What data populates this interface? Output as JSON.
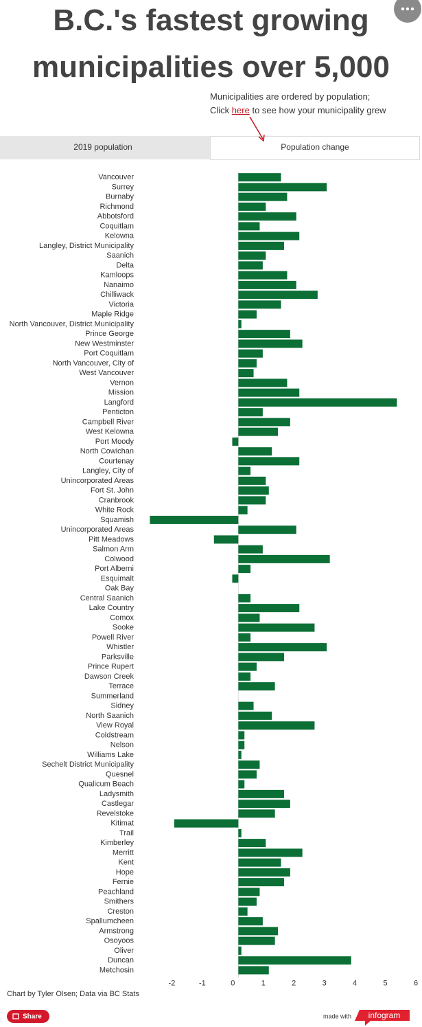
{
  "chart_data": {
    "type": "hbar",
    "title": "B.C.'s fastest growing municipalities over 5,000",
    "color": "#0b6f36",
    "categories": [
      "Vancouver",
      "Surrey",
      "Burnaby",
      "Richmond",
      "Abbotsford",
      "Coquitlam",
      "Kelowna",
      "Langley, District Municipality",
      "Saanich",
      "Delta",
      "Kamloops",
      "Nanaimo",
      "Chilliwack",
      "Victoria",
      "Maple Ridge",
      "North Vancouver, District Municipality",
      "Prince George",
      "New Westminster",
      "Port Coquitlam",
      "North Vancouver, City of",
      "West Vancouver",
      "Vernon",
      "Mission",
      "Langford",
      "Penticton",
      "Campbell River",
      "West Kelowna",
      "Port Moody",
      "North Cowichan",
      "Courtenay",
      "Langley, City of",
      "Unincorporated Areas",
      "Fort St. John",
      "Cranbrook",
      "White Rock",
      "Squamish",
      "Unincorporated Areas",
      "Pitt Meadows",
      "Salmon Arm",
      "Colwood",
      "Port Alberni",
      "Esquimalt",
      "Oak Bay",
      "Central Saanich",
      "Lake Country",
      "Comox",
      "Sooke",
      "Powell River",
      "Whistler",
      "Parksville",
      "Prince Rupert",
      "Dawson Creek",
      "Terrace",
      "Summerland",
      "Sidney",
      "North Saanich",
      "View Royal",
      "Coldstream",
      "Nelson",
      "Williams Lake",
      "Sechelt District Municipality",
      "Quesnel",
      "Qualicum Beach",
      "Ladysmith",
      "Castlegar",
      "Revelstoke",
      "Kitimat",
      "Trail",
      "Kimberley",
      "Merritt",
      "Kent",
      "Hope",
      "Fernie",
      "Peachland",
      "Smithers",
      "Creston",
      "Spallumcheen",
      "Armstrong",
      "Osoyoos",
      "Oliver",
      "Duncan",
      "Metchosin"
    ],
    "values": [
      1.4,
      2.9,
      1.6,
      0.9,
      1.9,
      0.7,
      2.0,
      1.5,
      0.9,
      0.8,
      1.6,
      1.9,
      2.6,
      1.4,
      0.6,
      0.1,
      1.7,
      2.1,
      0.8,
      0.6,
      0.5,
      1.6,
      2.0,
      5.2,
      0.8,
      1.7,
      1.3,
      -0.2,
      1.1,
      2.0,
      0.4,
      0.9,
      1.0,
      0.9,
      0.3,
      -2.9,
      1.9,
      -0.8,
      0.8,
      3.0,
      0.4,
      -0.2,
      0,
      0.4,
      2.0,
      0.7,
      2.5,
      0.4,
      2.9,
      1.5,
      0.6,
      0.4,
      1.2,
      0,
      0.5,
      1.1,
      2.5,
      0.2,
      0.2,
      0.1,
      0.7,
      0.6,
      0.2,
      1.5,
      1.7,
      1.2,
      -2.1,
      0.1,
      0.9,
      2.1,
      1.4,
      1.7,
      1.5,
      0.7,
      0.6,
      0.3,
      0.8,
      1.3,
      1.2,
      0.1,
      3.7,
      1.0
    ],
    "xlim": [
      -3,
      6
    ],
    "xticks": [
      -2,
      -1,
      0,
      1,
      2,
      3,
      4,
      5,
      6
    ]
  },
  "note": {
    "line1": "Municipalities are ordered by population;",
    "prefix": "Click",
    "link": "here",
    "suffix": "to see how your municipality grew"
  },
  "tabs": [
    "2019 population",
    "Population change"
  ],
  "footer": {
    "credit": "Chart by Tyler Olsen; Data via BC Stats",
    "share": "Share",
    "made_with": "made with",
    "brand": "infogram"
  }
}
